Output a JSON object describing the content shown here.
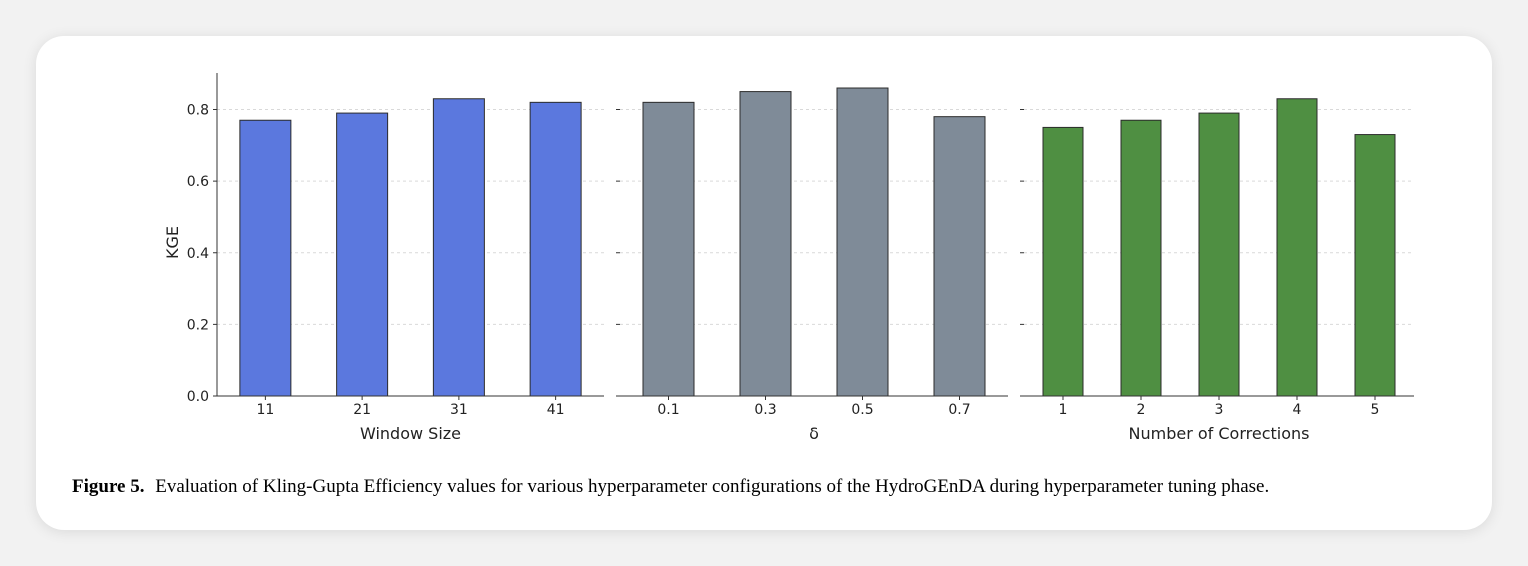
{
  "chart_data": [
    {
      "type": "bar",
      "xlabel": "Window Size",
      "ylabel": "KGE",
      "categories": [
        "11",
        "21",
        "31",
        "41"
      ],
      "values": [
        0.77,
        0.79,
        0.83,
        0.82
      ],
      "color": "#5b78de",
      "ylim": [
        0,
        0.9
      ],
      "yticks": [
        "0.0",
        "0.2",
        "0.4",
        "0.6",
        "0.8"
      ],
      "grid": true
    },
    {
      "type": "bar",
      "xlabel": "δ",
      "ylabel": "",
      "categories": [
        "0.1",
        "0.3",
        "0.5",
        "0.7"
      ],
      "values": [
        0.82,
        0.85,
        0.86,
        0.78
      ],
      "color": "#7f8b98",
      "ylim": [
        0,
        0.9
      ],
      "grid": true
    },
    {
      "type": "bar",
      "xlabel": "Number of Corrections",
      "ylabel": "",
      "categories": [
        "1",
        "2",
        "3",
        "4",
        "5"
      ],
      "values": [
        0.75,
        0.77,
        0.79,
        0.83,
        0.73
      ],
      "color": "#4f8f42",
      "ylim": [
        0,
        0.9
      ],
      "grid": true
    }
  ],
  "caption": {
    "label": "Figure 5.",
    "text": "Evaluation of Kling-Gupta Efficiency values for various hyperparameter configurations of the HydroGEnDA during hyperparameter tuning phase."
  }
}
